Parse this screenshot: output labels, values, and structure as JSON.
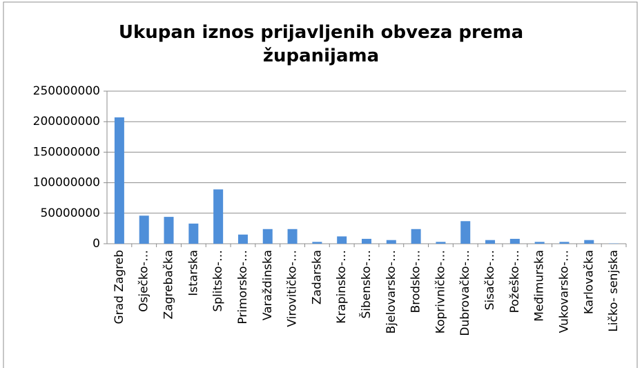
{
  "chart_data": {
    "type": "bar",
    "title": "Ukupan iznos prijavljenih obveza prema županijama",
    "categories": [
      "Grad Zagreb",
      "Osječko-…",
      "Zagrebačka",
      "Istarska",
      "Splitsko-…",
      "Primorsko-…",
      "Varaždinska",
      "Virovitičko-…",
      "Zadarska",
      "Krapinsko-…",
      "Šibensko-…",
      "Bjelovarsko-…",
      "Brodsko-…",
      "Koprivničko-…",
      "Dubrovačko-…",
      "Sisačko-…",
      "Požeško-…",
      "Međimurska",
      "Vukovarsko-…",
      "Karlovačka",
      "Ličko- senjska"
    ],
    "values": [
      207000000,
      46000000,
      44000000,
      33000000,
      89000000,
      15000000,
      24000000,
      24000000,
      3000000,
      12000000,
      8000000,
      6000000,
      24000000,
      3000000,
      37000000,
      6000000,
      8000000,
      3000000,
      3000000,
      6000000,
      500000
    ],
    "color": "#4f8fd9",
    "ylim": [
      0,
      250000000
    ],
    "yticks": [
      0,
      50000000,
      100000000,
      150000000,
      200000000,
      250000000
    ],
    "grid": true
  }
}
